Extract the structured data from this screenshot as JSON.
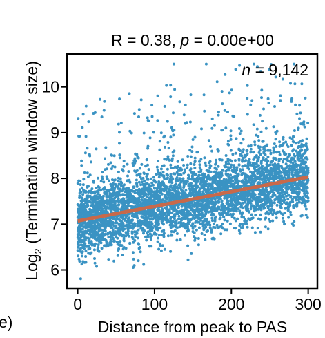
{
  "chart_data": {
    "type": "scatter",
    "title": {
      "prefix": "R = 0.38, ",
      "p_symbol": "p",
      "suffix": " = 0.00e+00"
    },
    "annotation": {
      "n_symbol": "n",
      "n_value": " = 9,142"
    },
    "xlabel": "Distance from peak to PAS",
    "ylabel": {
      "prefix": "Log",
      "subscript": "2",
      "rest": " (Termination window size)"
    },
    "left_fragment": "e)",
    "x_ticks": [
      0,
      100,
      200,
      300
    ],
    "y_ticks": [
      6,
      7,
      8,
      9,
      10
    ],
    "xlim": [
      -14,
      312
    ],
    "ylim": [
      5.6,
      10.72
    ],
    "regression_line": {
      "x": [
        0,
        300
      ],
      "y": [
        7.07,
        8.03
      ]
    },
    "n_points": 9142,
    "point_color": "#3a93c3",
    "line_color": "#c8694a",
    "grid": false,
    "legend": "none"
  }
}
